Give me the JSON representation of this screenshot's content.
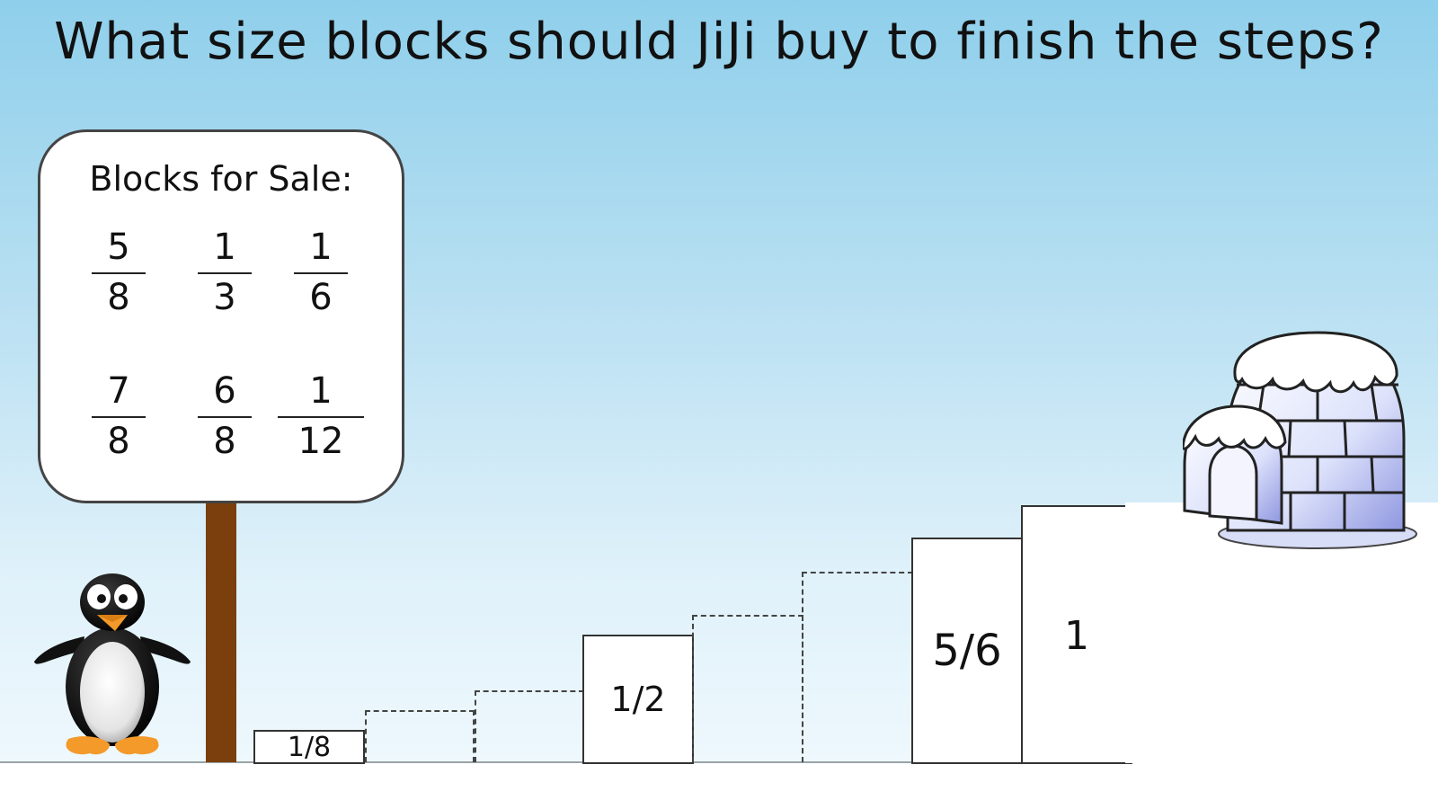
{
  "title": "What size blocks should JiJi buy to finish the steps?",
  "sign": {
    "heading": "Blocks for Sale:",
    "fractions": [
      {
        "num": "5",
        "den": "8"
      },
      {
        "num": "1",
        "den": "3"
      },
      {
        "num": "1",
        "den": "6"
      },
      {
        "num": "7",
        "den": "8"
      },
      {
        "num": "6",
        "den": "8"
      },
      {
        "num": "1",
        "den": "12"
      }
    ]
  },
  "steps": {
    "placed": [
      "1/8",
      "1/2",
      "5/6",
      "1"
    ],
    "missing_count": 4
  },
  "colors": {
    "sky_top": "#8fcfeb",
    "sky_bottom": "#eef8fd",
    "post": "#7a3f0c",
    "penguin_beak": "#f39a2a"
  },
  "icons": [
    "penguin",
    "igloo",
    "sign-post"
  ]
}
